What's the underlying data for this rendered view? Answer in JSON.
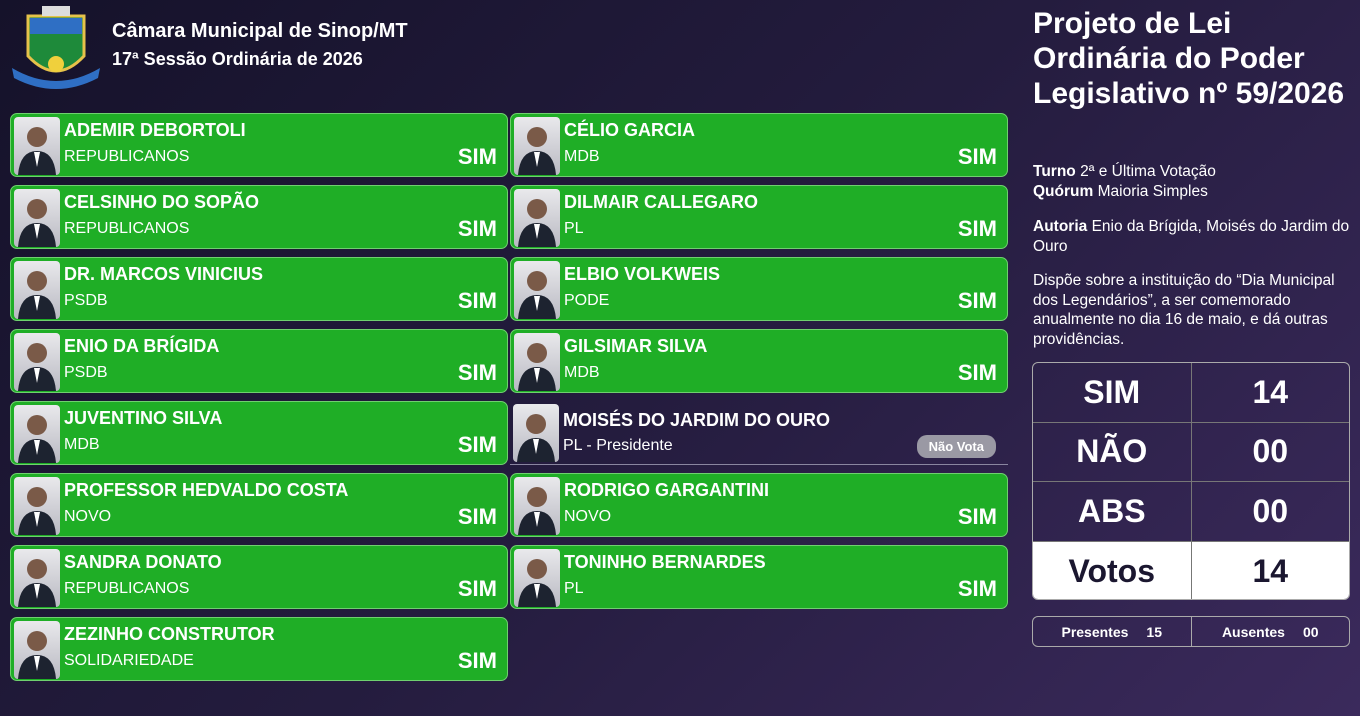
{
  "header": {
    "title": "Câmara Municipal de Sinop/MT",
    "subtitle": "17ª Sessão Ordinária de 2026"
  },
  "left_column": [
    {
      "name": "ADEMIR DEBORTOLI",
      "party": "REPUBLICANOS",
      "vote": "SIM"
    },
    {
      "name": "CELSINHO DO SOPÃO",
      "party": "REPUBLICANOS",
      "vote": "SIM"
    },
    {
      "name": "DR. MARCOS VINICIUS",
      "party": "PSDB",
      "vote": "SIM"
    },
    {
      "name": "ENIO DA BRÍGIDA",
      "party": "PSDB",
      "vote": "SIM"
    },
    {
      "name": "JUVENTINO SILVA",
      "party": "MDB",
      "vote": "SIM"
    },
    {
      "name": "PROFESSOR HEDVALDO COSTA",
      "party": "NOVO",
      "vote": "SIM"
    },
    {
      "name": "SANDRA DONATO",
      "party": "REPUBLICANOS",
      "vote": "SIM"
    },
    {
      "name": "ZEZINHO CONSTRUTOR",
      "party": "SOLIDARIEDADE",
      "vote": "SIM"
    }
  ],
  "right_column": [
    {
      "name": "CÉLIO GARCIA",
      "party": "MDB",
      "vote": "SIM"
    },
    {
      "name": "DILMAIR CALLEGARO",
      "party": "PL",
      "vote": "SIM"
    },
    {
      "name": "ELBIO VOLKWEIS",
      "party": "PODE",
      "vote": "SIM"
    },
    {
      "name": "GILSIMAR SILVA",
      "party": "MDB",
      "vote": "SIM"
    },
    {
      "name": "MOISÉS DO JARDIM DO OURO",
      "party": "PL - Presidente",
      "vote": "Não Vota"
    },
    {
      "name": "RODRIGO GARGANTINI",
      "party": "NOVO",
      "vote": "SIM"
    },
    {
      "name": "TONINHO BERNARDES",
      "party": "PL",
      "vote": "SIM"
    }
  ],
  "bill": {
    "title": "Projeto de Lei Ordinária do Poder Legislativo nº 59/2026",
    "turno": {
      "label": "Turno",
      "value": "2ª e Última Votação"
    },
    "quorum": {
      "label": "Quórum",
      "value": "Maioria Simples"
    },
    "autoria": {
      "label": "Autoria",
      "value": "Enio da Brígida, Moisés do Jardim do Ouro"
    },
    "description": "Dispõe sobre a instituição do “Dia Municipal dos Legendários”, a ser comemorado anualmente no dia 16 de maio, e dá outras providências."
  },
  "tally": [
    {
      "label": "SIM",
      "value": "14"
    },
    {
      "label": "NÃO",
      "value": "00"
    },
    {
      "label": "ABS",
      "value": "00"
    },
    {
      "label": "Votos",
      "value": "14"
    }
  ],
  "attendance": {
    "present": {
      "label": "Presentes",
      "value": "15"
    },
    "absent": {
      "label": "Ausentes",
      "value": "00"
    }
  }
}
